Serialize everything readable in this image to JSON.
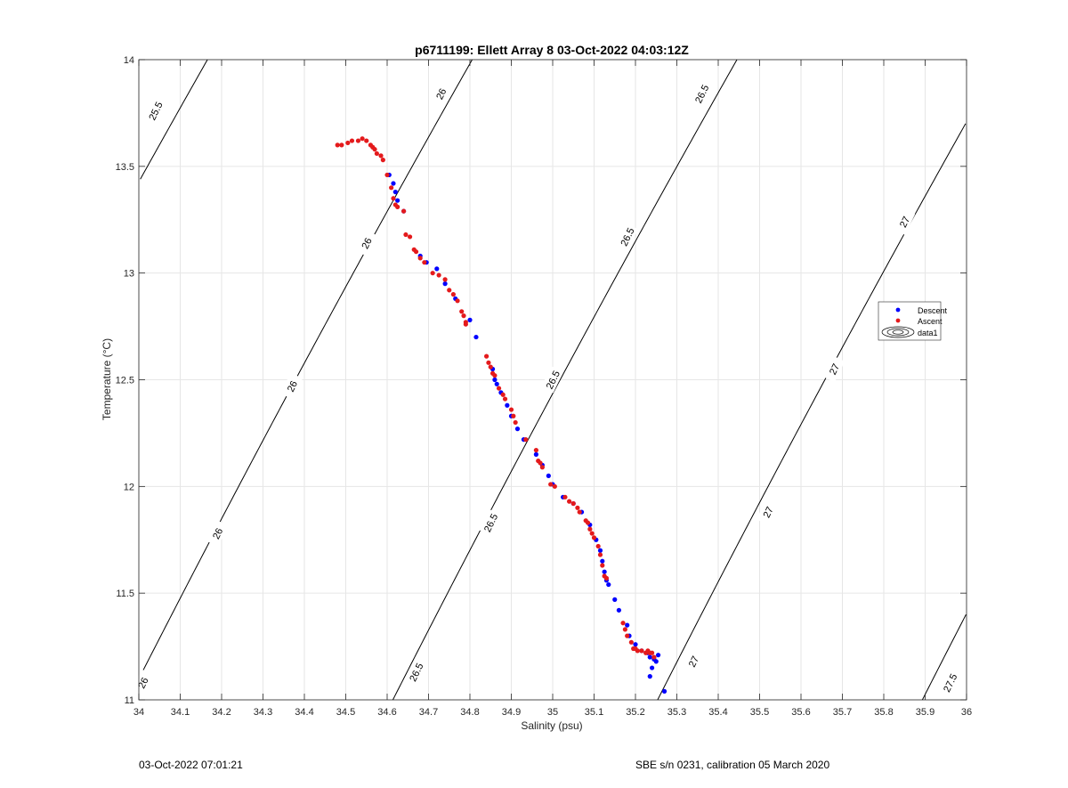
{
  "chart_data": {
    "type": "scatter",
    "title": "p6711199: Ellett Array 8 03-Oct-2022 04:03:12Z",
    "xlabel": "Salinity (psu)",
    "ylabel": "Temperature (°C)",
    "xlim": [
      34,
      36
    ],
    "ylim": [
      11,
      14
    ],
    "xticks": [
      34,
      34.1,
      34.2,
      34.3,
      34.4,
      34.5,
      34.6,
      34.7,
      34.8,
      34.9,
      35,
      35.1,
      35.2,
      35.3,
      35.4,
      35.5,
      35.6,
      35.7,
      35.8,
      35.9,
      36
    ],
    "xtick_labels": [
      "34",
      "34.1",
      "34.2",
      "34.3",
      "34.4",
      "34.5",
      "34.6",
      "34.7",
      "34.8",
      "34.9",
      "35",
      "35.1",
      "35.2",
      "35.3",
      "35.4",
      "35.5",
      "35.6",
      "35.7",
      "35.8",
      "35.9",
      "36"
    ],
    "yticks": [
      11,
      11.5,
      12,
      12.5,
      13,
      13.5,
      14
    ],
    "ytick_labels": [
      "11",
      "11.5",
      "12",
      "12.5",
      "13",
      "13.5",
      "14"
    ],
    "grid": true,
    "legend_position": "right",
    "legend": [
      "Descent",
      "Ascent",
      "data1"
    ],
    "series": [
      {
        "name": "Descent",
        "color": "#0000ff",
        "points": [
          [
            34.605,
            13.46
          ],
          [
            34.615,
            13.42
          ],
          [
            34.62,
            13.38
          ],
          [
            34.625,
            13.34
          ],
          [
            34.64,
            13.29
          ],
          [
            34.68,
            13.08
          ],
          [
            34.695,
            13.05
          ],
          [
            34.72,
            13.02
          ],
          [
            34.74,
            12.95
          ],
          [
            34.765,
            12.88
          ],
          [
            34.8,
            12.78
          ],
          [
            34.815,
            12.7
          ],
          [
            34.855,
            12.55
          ],
          [
            34.86,
            12.5
          ],
          [
            34.865,
            12.48
          ],
          [
            34.875,
            12.44
          ],
          [
            34.89,
            12.38
          ],
          [
            34.9,
            12.33
          ],
          [
            34.915,
            12.27
          ],
          [
            34.93,
            12.22
          ],
          [
            34.96,
            12.15
          ],
          [
            34.975,
            12.1
          ],
          [
            34.99,
            12.05
          ],
          [
            35.0,
            12.01
          ],
          [
            35.025,
            11.95
          ],
          [
            35.05,
            11.92
          ],
          [
            35.07,
            11.88
          ],
          [
            35.09,
            11.82
          ],
          [
            35.105,
            11.75
          ],
          [
            35.115,
            11.7
          ],
          [
            35.12,
            11.65
          ],
          [
            35.125,
            11.6
          ],
          [
            35.13,
            11.56
          ],
          [
            35.135,
            11.54
          ],
          [
            35.15,
            11.47
          ],
          [
            35.16,
            11.42
          ],
          [
            35.18,
            11.35
          ],
          [
            35.185,
            11.3
          ],
          [
            35.2,
            11.26
          ],
          [
            35.215,
            11.23
          ],
          [
            35.23,
            11.22
          ],
          [
            35.235,
            11.2
          ],
          [
            35.245,
            11.19
          ],
          [
            35.25,
            11.18
          ],
          [
            35.255,
            11.21
          ],
          [
            35.24,
            11.15
          ],
          [
            35.235,
            11.11
          ],
          [
            35.27,
            11.04
          ]
        ]
      },
      {
        "name": "Ascent",
        "color": "#e41a1c",
        "points": [
          [
            34.48,
            13.6
          ],
          [
            34.49,
            13.6
          ],
          [
            34.505,
            13.61
          ],
          [
            34.515,
            13.62
          ],
          [
            34.53,
            13.62
          ],
          [
            34.54,
            13.63
          ],
          [
            34.55,
            13.62
          ],
          [
            34.56,
            13.6
          ],
          [
            34.565,
            13.59
          ],
          [
            34.57,
            13.58
          ],
          [
            34.575,
            13.56
          ],
          [
            34.585,
            13.55
          ],
          [
            34.59,
            13.53
          ],
          [
            34.6,
            13.46
          ],
          [
            34.61,
            13.4
          ],
          [
            34.615,
            13.35
          ],
          [
            34.62,
            13.32
          ],
          [
            34.625,
            13.31
          ],
          [
            34.64,
            13.29
          ],
          [
            34.645,
            13.18
          ],
          [
            34.655,
            13.17
          ],
          [
            34.665,
            13.11
          ],
          [
            34.67,
            13.1
          ],
          [
            34.68,
            13.07
          ],
          [
            34.69,
            13.05
          ],
          [
            34.71,
            13.0
          ],
          [
            34.725,
            12.99
          ],
          [
            34.74,
            12.97
          ],
          [
            34.75,
            12.92
          ],
          [
            34.76,
            12.9
          ],
          [
            34.77,
            12.87
          ],
          [
            34.78,
            12.82
          ],
          [
            34.785,
            12.8
          ],
          [
            34.79,
            12.77
          ],
          [
            34.79,
            12.76
          ],
          [
            34.84,
            12.61
          ],
          [
            34.845,
            12.58
          ],
          [
            34.85,
            12.56
          ],
          [
            34.855,
            12.53
          ],
          [
            34.86,
            12.52
          ],
          [
            34.87,
            12.46
          ],
          [
            34.88,
            12.43
          ],
          [
            34.885,
            12.41
          ],
          [
            34.9,
            12.36
          ],
          [
            34.905,
            12.33
          ],
          [
            34.91,
            12.3
          ],
          [
            34.935,
            12.22
          ],
          [
            34.96,
            12.17
          ],
          [
            34.965,
            12.12
          ],
          [
            34.97,
            12.11
          ],
          [
            34.975,
            12.09
          ],
          [
            34.995,
            12.01
          ],
          [
            35.005,
            12.0
          ],
          [
            35.03,
            11.95
          ],
          [
            35.04,
            11.93
          ],
          [
            35.05,
            11.92
          ],
          [
            35.06,
            11.9
          ],
          [
            35.065,
            11.88
          ],
          [
            35.08,
            11.84
          ],
          [
            35.085,
            11.83
          ],
          [
            35.09,
            11.8
          ],
          [
            35.095,
            11.78
          ],
          [
            35.1,
            11.76
          ],
          [
            35.11,
            11.72
          ],
          [
            35.115,
            11.68
          ],
          [
            35.12,
            11.63
          ],
          [
            35.125,
            11.58
          ],
          [
            35.13,
            11.57
          ],
          [
            35.17,
            11.36
          ],
          [
            35.175,
            11.33
          ],
          [
            35.18,
            11.3
          ],
          [
            35.19,
            11.27
          ],
          [
            35.195,
            11.24
          ],
          [
            35.2,
            11.24
          ],
          [
            35.205,
            11.23
          ],
          [
            35.215,
            11.23
          ],
          [
            35.225,
            11.22
          ],
          [
            35.23,
            11.23
          ],
          [
            35.235,
            11.22
          ],
          [
            35.24,
            11.22
          ],
          [
            35.245,
            11.2
          ]
        ]
      }
    ],
    "density_contours": {
      "name": "data1",
      "color": "#000000",
      "levels": [
        25.5,
        26,
        26.5,
        27,
        27.5
      ],
      "label_text": [
        "25.5",
        "26",
        "26.5",
        "27",
        "27.5"
      ],
      "labels": [
        {
          "level": 25.5,
          "s": 34.04,
          "t": 13.76
        },
        {
          "level": 26,
          "s": 34.01,
          "t": 11.08
        },
        {
          "level": 26,
          "s": 34.19,
          "t": 11.78
        },
        {
          "level": 26,
          "s": 34.37,
          "t": 12.47
        },
        {
          "level": 26,
          "s": 34.55,
          "t": 13.14
        },
        {
          "level": 26,
          "s": 34.73,
          "t": 13.84
        },
        {
          "level": 26.5,
          "s": 34.67,
          "t": 11.13
        },
        {
          "level": 26.5,
          "s": 34.85,
          "t": 11.83
        },
        {
          "level": 26.5,
          "s": 35.0,
          "t": 12.5
        },
        {
          "level": 26.5,
          "s": 35.18,
          "t": 13.17
        },
        {
          "level": 26.5,
          "s": 35.36,
          "t": 13.84
        },
        {
          "level": 27,
          "s": 35.34,
          "t": 11.18
        },
        {
          "level": 27,
          "s": 35.52,
          "t": 11.88
        },
        {
          "level": 27,
          "s": 35.68,
          "t": 12.55
        },
        {
          "level": 27,
          "s": 35.85,
          "t": 13.24
        },
        {
          "level": 27.5,
          "s": 35.96,
          "t": 11.08
        }
      ]
    }
  },
  "footer": {
    "left": "03-Oct-2022 07:01:21",
    "right": "SBE s/n 0231, calibration 05 March 2020"
  }
}
